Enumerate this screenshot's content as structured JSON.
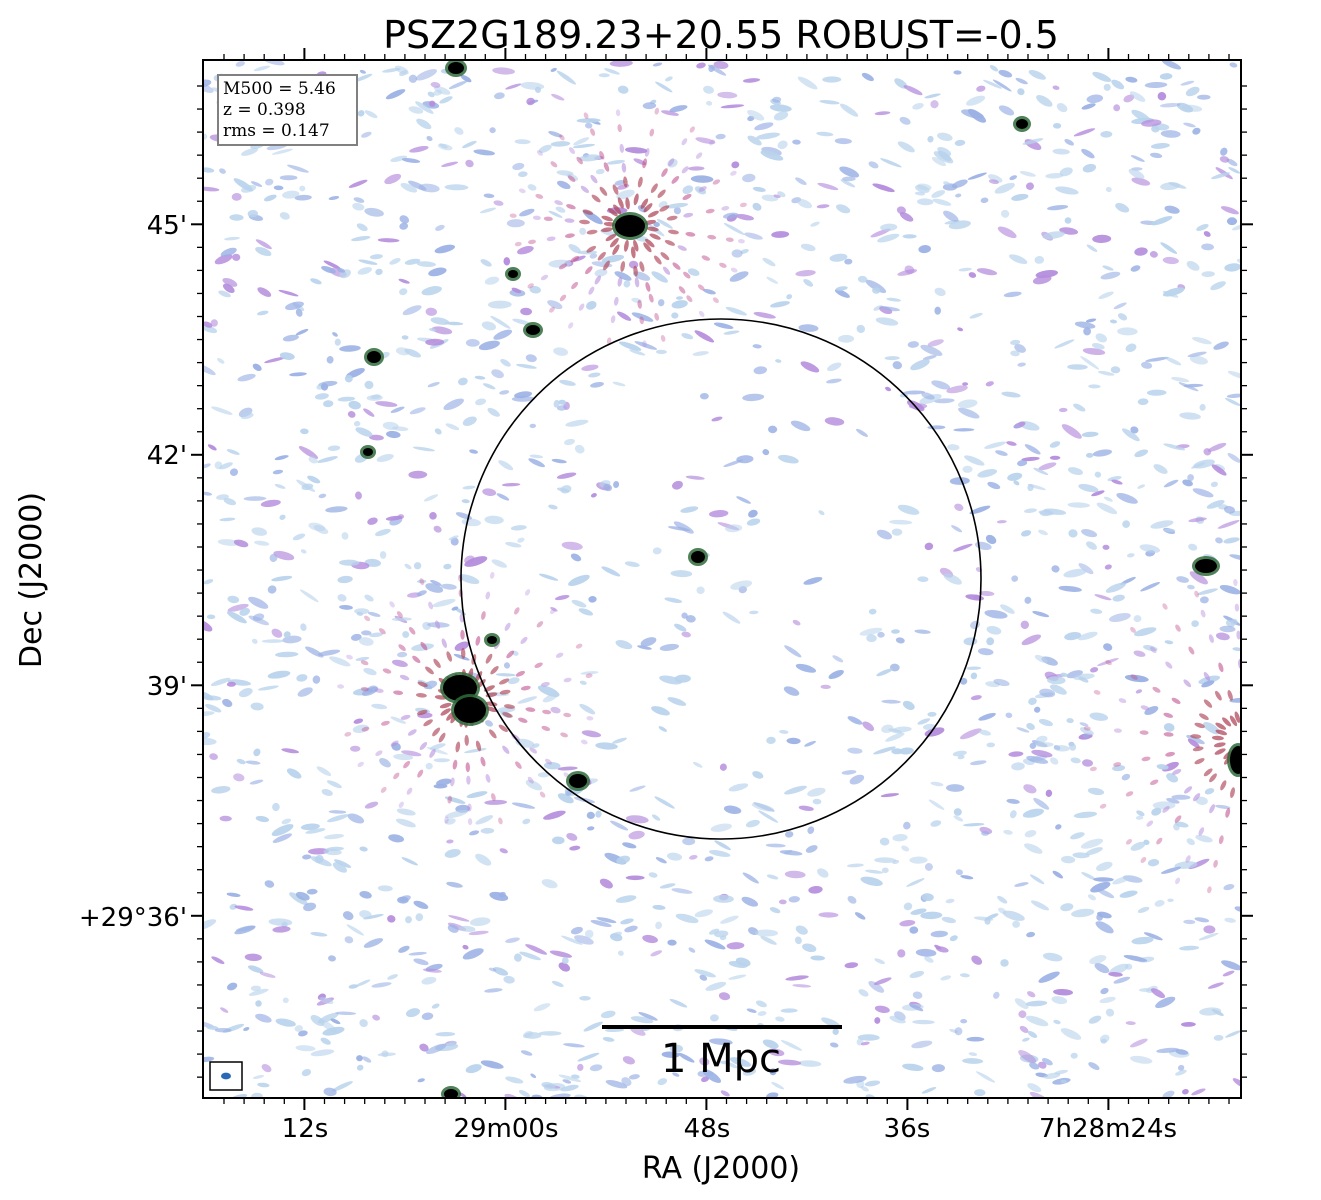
{
  "title": "PSZ2G189.23+20.55 ROBUST=-0.5",
  "info": {
    "m500": "M500 = 5.46",
    "z": "z = 0.398",
    "rms": "rms = 0.147"
  },
  "x_axis": {
    "label": "RA (J2000)",
    "ticks": [
      "12s",
      "29m00s",
      "48s",
      "36s",
      "7h28m24s"
    ]
  },
  "y_axis": {
    "label": "Dec (J2000)",
    "ticks": [
      "45'",
      "42'",
      "39'",
      "+29°36'"
    ]
  },
  "scalebar": {
    "label": "1 Mpc"
  },
  "colors": {
    "noise_light": "#b9d3ec",
    "noise_blue": "#9ab0e4",
    "noise_purple": "#b48cdc",
    "noise_magenta": "#c0508e",
    "noise_red": "#b04a5c",
    "source_core": "#000000",
    "source_edge": "#2f6b3a",
    "beam": "#2a6ab5"
  }
}
